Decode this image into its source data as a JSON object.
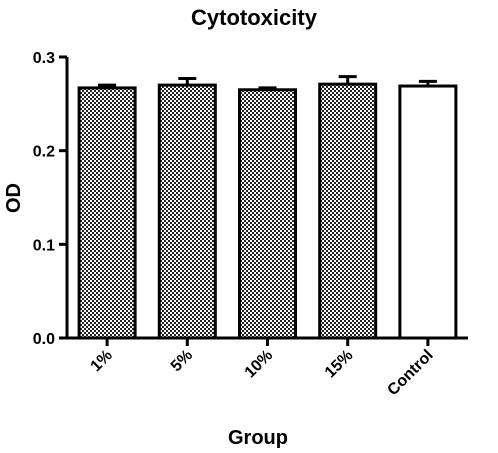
{
  "chart_data": {
    "type": "bar",
    "title": "Cytotoxicity",
    "xlabel": "Group",
    "ylabel": "OD",
    "categories": [
      "1%",
      "5%",
      "10%",
      "15%",
      "Control"
    ],
    "values": [
      0.267,
      0.27,
      0.265,
      0.271,
      0.269
    ],
    "errors": [
      0.003,
      0.007,
      0.002,
      0.008,
      0.005
    ],
    "ylim": [
      0,
      0.3
    ],
    "yticks": [
      "0.0",
      "0.1",
      "0.2",
      "0.3"
    ],
    "bar_fills": [
      "pattern",
      "pattern",
      "pattern",
      "pattern",
      "white"
    ],
    "grid": false,
    "colors": {
      "bar_pattern_dark": "#222222",
      "bar_pattern_light": "#ffffff",
      "control_fill": "#ffffff",
      "stroke": "#000000"
    }
  }
}
